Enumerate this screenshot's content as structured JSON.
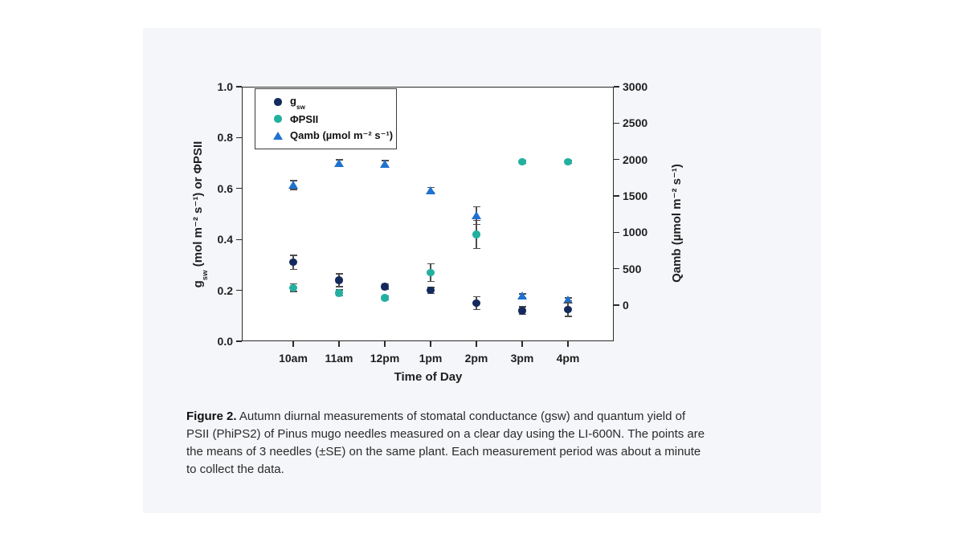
{
  "panel": {
    "background": "#f4f6f9"
  },
  "chart_data": {
    "type": "scatter",
    "categories": [
      "10am",
      "11am",
      "12pm",
      "1pm",
      "2pm",
      "3pm",
      "4pm"
    ],
    "x_axis": {
      "label": "Time of Day"
    },
    "y_left": {
      "label_prefix": "g",
      "label_sub": "sw",
      "label_rest": " (mol m⁻² s⁻¹) or ΦPSII",
      "ticks": [
        0.0,
        0.2,
        0.4,
        0.6,
        0.8,
        1.0
      ],
      "range": [
        0.0,
        1.0
      ]
    },
    "y_right": {
      "label": "Qamb (µmol m⁻² s⁻¹)",
      "ticks": [
        0,
        500,
        1000,
        1500,
        2000,
        2500,
        3000
      ],
      "range": [
        -500,
        3000
      ]
    },
    "grid": false,
    "legend_position": "upper left",
    "legend": {
      "entries": [
        {
          "label_prefix": "g",
          "label_sub": "sw"
        },
        {
          "label": "ΦPSII"
        },
        {
          "label": "Qamb (µmol m⁻² s⁻¹)"
        }
      ]
    },
    "series": [
      {
        "key": "qamb",
        "name": "Qamb (µmol m⁻² s⁻¹)",
        "axis": "right",
        "marker": "triangle",
        "color": "#1f72cf",
        "values": [
          1650,
          1950,
          1940,
          1580,
          1230,
          130,
          80
        ],
        "se": [
          60,
          45,
          45,
          35,
          120,
          25,
          20
        ]
      },
      {
        "key": "phipsii",
        "name": "ΦPSII",
        "axis": "left",
        "marker": "circle",
        "color": "#23b0a1",
        "values": [
          0.21,
          0.19,
          0.17,
          0.27,
          0.42,
          0.705,
          0.705
        ],
        "se": [
          0.015,
          0.012,
          0.008,
          0.035,
          0.055,
          0.006,
          0.006
        ]
      },
      {
        "key": "gsw",
        "name": "gsw",
        "axis": "left",
        "marker": "circle",
        "color": "#142a5c",
        "values": [
          0.31,
          0.24,
          0.215,
          0.2,
          0.15,
          0.12,
          0.125
        ],
        "se": [
          0.028,
          0.025,
          0.01,
          0.012,
          0.025,
          0.015,
          0.027
        ]
      }
    ],
    "error_bar_color": "#4d4d4d"
  },
  "caption": {
    "label": "Figure 2.",
    "text": " Autumn diurnal measurements of stomatal conductance (gsw) and quantum yield of PSII (PhiPS2) of Pinus mugo needles measured on a clear day using the LI-600N. The points are the means of 3 needles (±SE) on the same plant. Each measurement period was about a minute to collect the data."
  }
}
